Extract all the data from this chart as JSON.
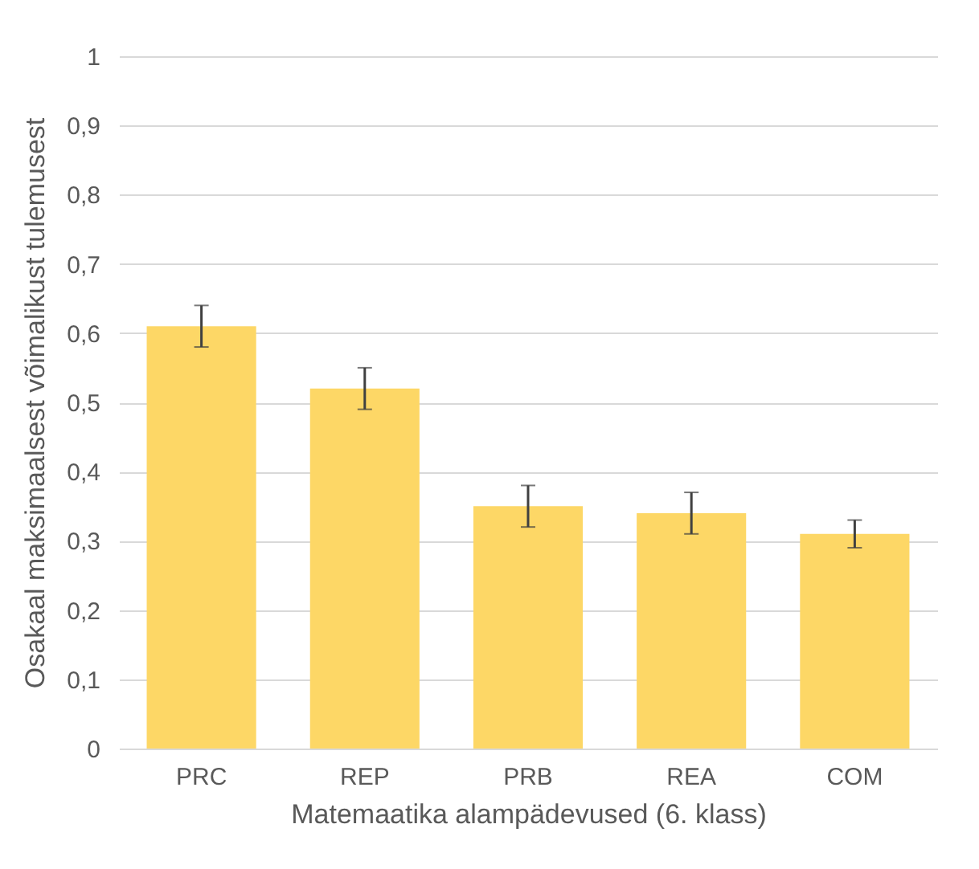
{
  "chart_data": {
    "type": "bar",
    "xlabel": "Matemaatika alampädevused (6. klass)",
    "ylabel": "Osakaal maksimaalsest võimalikust tulemusest",
    "categories": [
      "PRC",
      "REP",
      "PRB",
      "REA",
      "COM"
    ],
    "values": [
      0.61,
      0.52,
      0.35,
      0.34,
      0.31
    ],
    "errors": [
      [
        0.58,
        0.64
      ],
      [
        0.49,
        0.55
      ],
      [
        0.32,
        0.38
      ],
      [
        0.31,
        0.37
      ],
      [
        0.29,
        0.33
      ]
    ],
    "color": "#fdd766",
    "ylim": [
      0,
      1
    ],
    "yticks": [
      {
        "value": 0,
        "label": "0"
      },
      {
        "value": 0.1,
        "label": "0,1"
      },
      {
        "value": 0.2,
        "label": "0,2"
      },
      {
        "value": 0.3,
        "label": "0,3"
      },
      {
        "value": 0.4,
        "label": "0,4"
      },
      {
        "value": 0.5,
        "label": "0,5"
      },
      {
        "value": 0.6,
        "label": "0,6"
      },
      {
        "value": 0.7,
        "label": "0,7"
      },
      {
        "value": 0.8,
        "label": "0,8"
      },
      {
        "value": 0.9,
        "label": "0,9"
      },
      {
        "value": 1,
        "label": "1"
      }
    ],
    "grid": "y"
  }
}
